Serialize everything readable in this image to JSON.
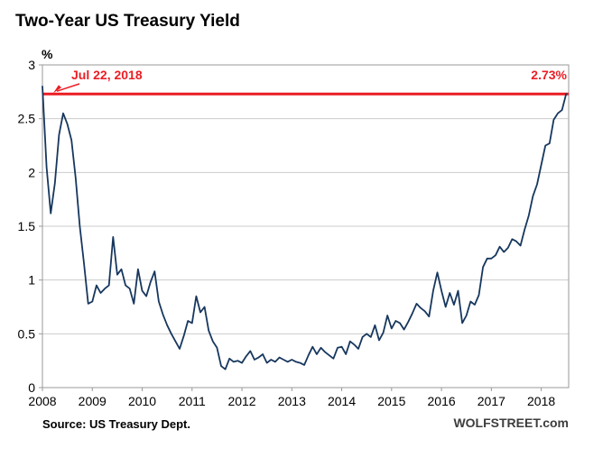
{
  "header": {
    "title": "Two-Year US Treasury Yield"
  },
  "footer": {
    "source": "Source: US Treasury Dept.",
    "watermark": "WOLFSTREET.com"
  },
  "colors": {
    "series_line": "#17375e",
    "reference_red": "#ec1c24",
    "grid": "#cccccc",
    "plot_border": "#999999",
    "axis_text": "#000000"
  },
  "chart_data": {
    "type": "line",
    "title": "Two-Year US Treasury Yield",
    "ylabel": "%",
    "ylim": [
      0,
      3
    ],
    "yticks": [
      0,
      0.5,
      1,
      1.5,
      2,
      2.5,
      3
    ],
    "xlim": [
      2008,
      2018.55
    ],
    "xticks": [
      2008,
      2009,
      2010,
      2011,
      2012,
      2013,
      2014,
      2015,
      2016,
      2017,
      2018
    ],
    "grid": true,
    "legend": "none",
    "series": [
      {
        "name": "Two-Year US Treasury Yield (%)",
        "x_start_year": 2008,
        "points_per_year": 12,
        "values": [
          2.8,
          2.05,
          1.62,
          1.9,
          2.35,
          2.55,
          2.45,
          2.3,
          1.95,
          1.5,
          1.15,
          0.78,
          0.8,
          0.95,
          0.88,
          0.92,
          0.95,
          1.4,
          1.05,
          1.1,
          0.95,
          0.92,
          0.78,
          1.1,
          0.9,
          0.85,
          0.98,
          1.08,
          0.8,
          0.68,
          0.58,
          0.5,
          0.43,
          0.36,
          0.48,
          0.62,
          0.6,
          0.85,
          0.7,
          0.75,
          0.53,
          0.43,
          0.37,
          0.2,
          0.17,
          0.27,
          0.24,
          0.25,
          0.23,
          0.29,
          0.34,
          0.26,
          0.28,
          0.31,
          0.23,
          0.26,
          0.24,
          0.28,
          0.26,
          0.24,
          0.26,
          0.24,
          0.23,
          0.21,
          0.3,
          0.38,
          0.31,
          0.37,
          0.33,
          0.3,
          0.27,
          0.37,
          0.38,
          0.31,
          0.43,
          0.4,
          0.36,
          0.47,
          0.5,
          0.47,
          0.58,
          0.44,
          0.51,
          0.67,
          0.55,
          0.62,
          0.6,
          0.54,
          0.61,
          0.69,
          0.78,
          0.74,
          0.71,
          0.66,
          0.9,
          1.07,
          0.9,
          0.75,
          0.88,
          0.77,
          0.9,
          0.6,
          0.67,
          0.8,
          0.77,
          0.86,
          1.12,
          1.2,
          1.2,
          1.23,
          1.31,
          1.26,
          1.3,
          1.38,
          1.36,
          1.32,
          1.47,
          1.6,
          1.78,
          1.89,
          2.07,
          2.25,
          2.27,
          2.49,
          2.55,
          2.58,
          2.73
        ]
      }
    ],
    "ref_line": {
      "value": 2.73,
      "date_label": "Jul 22, 2018",
      "value_label": "2.73%",
      "color": "#ec1c24"
    }
  }
}
